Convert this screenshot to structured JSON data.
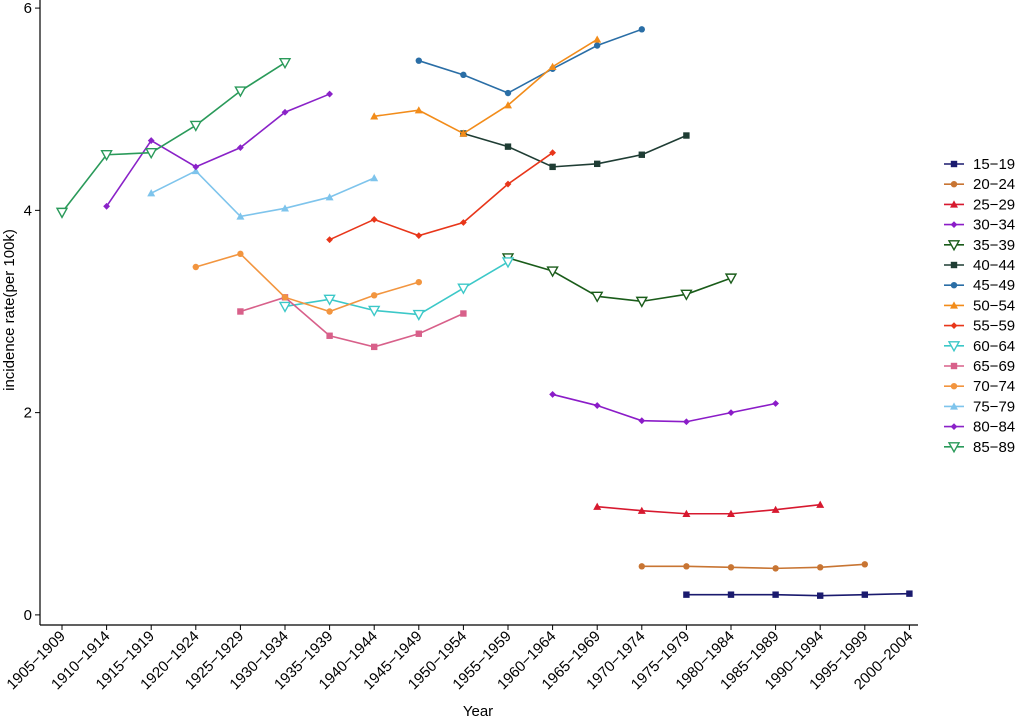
{
  "chart_data": {
    "type": "line",
    "title": "",
    "xlabel": "Year",
    "ylabel": "incidence rate(per 100k)",
    "ylim": [
      -0.1,
      6.08
    ],
    "yticks": [
      0,
      2,
      4,
      6
    ],
    "grid": false,
    "legend_position": "right",
    "categories": [
      "1905−1909",
      "1910−1914",
      "1915−1919",
      "1920−1924",
      "1925−1929",
      "1930−1934",
      "1935−1939",
      "1940−1944",
      "1945−1949",
      "1950−1954",
      "1955−1959",
      "1960−1964",
      "1965−1969",
      "1970−1974",
      "1975−1979",
      "1980−1984",
      "1985−1989",
      "1990−1994",
      "1995−1999",
      "2000−2004"
    ],
    "series": [
      {
        "name": "15−19",
        "color": "#1a1a6e",
        "marker": "square",
        "values": [
          null,
          null,
          null,
          null,
          null,
          null,
          null,
          null,
          null,
          null,
          null,
          null,
          null,
          null,
          0.2,
          0.2,
          0.2,
          0.19,
          0.2,
          0.21
        ]
      },
      {
        "name": "20−24",
        "color": "#c87533",
        "marker": "circle",
        "values": [
          null,
          null,
          null,
          null,
          null,
          null,
          null,
          null,
          null,
          null,
          null,
          null,
          null,
          0.48,
          0.48,
          0.47,
          0.46,
          0.47,
          0.5,
          null
        ]
      },
      {
        "name": "25−29",
        "color": "#d7192f",
        "marker": "triangle",
        "values": [
          null,
          null,
          null,
          null,
          null,
          null,
          null,
          null,
          null,
          null,
          null,
          null,
          1.07,
          1.03,
          1.0,
          1.0,
          1.04,
          1.09,
          null,
          null
        ]
      },
      {
        "name": "30−34",
        "color": "#8b1cc8",
        "marker": "diamond",
        "values": [
          null,
          null,
          null,
          null,
          null,
          null,
          null,
          null,
          null,
          null,
          null,
          2.18,
          2.07,
          1.92,
          1.91,
          2.0,
          2.09,
          null,
          null,
          null
        ]
      },
      {
        "name": "35−39",
        "color": "#1a5c1a",
        "marker": "triangle-down",
        "values": [
          null,
          null,
          null,
          null,
          null,
          null,
          null,
          null,
          null,
          null,
          3.53,
          3.4,
          3.15,
          3.1,
          3.17,
          3.33,
          null,
          null,
          null,
          null
        ]
      },
      {
        "name": "40−44",
        "color": "#1f3d34",
        "marker": "square",
        "values": [
          null,
          null,
          null,
          null,
          null,
          null,
          null,
          null,
          null,
          4.76,
          4.63,
          4.43,
          4.46,
          4.55,
          4.74,
          null,
          null,
          null,
          null,
          null
        ]
      },
      {
        "name": "45−49",
        "color": "#2a6ea6",
        "marker": "circle",
        "values": [
          null,
          null,
          null,
          null,
          null,
          null,
          null,
          null,
          5.48,
          5.34,
          5.16,
          5.4,
          5.63,
          5.79,
          null,
          null,
          null,
          null,
          null,
          null
        ]
      },
      {
        "name": "50−54",
        "color": "#f28c1a",
        "marker": "triangle",
        "values": [
          null,
          null,
          null,
          null,
          null,
          null,
          null,
          4.93,
          4.99,
          4.76,
          5.04,
          5.42,
          5.69,
          null,
          null,
          null,
          null,
          null,
          null,
          null
        ]
      },
      {
        "name": "55−59",
        "color": "#e8361a",
        "marker": "diamond",
        "values": [
          null,
          null,
          null,
          null,
          null,
          null,
          3.71,
          3.91,
          3.75,
          3.88,
          4.26,
          4.57,
          null,
          null,
          null,
          null,
          null,
          null,
          null,
          null
        ]
      },
      {
        "name": "60−64",
        "color": "#3cc8c8",
        "marker": "triangle-down",
        "values": [
          null,
          null,
          null,
          null,
          null,
          3.05,
          3.12,
          3.01,
          2.97,
          3.23,
          3.49,
          null,
          null,
          null,
          null,
          null,
          null,
          null,
          null,
          null
        ]
      },
      {
        "name": "65−69",
        "color": "#d8608a",
        "marker": "square",
        "values": [
          null,
          null,
          null,
          null,
          3.0,
          3.14,
          2.76,
          2.65,
          2.78,
          2.98,
          null,
          null,
          null,
          null,
          null,
          null,
          null,
          null,
          null,
          null
        ]
      },
      {
        "name": "70−74",
        "color": "#f2953f",
        "marker": "circle",
        "values": [
          null,
          null,
          null,
          3.44,
          3.57,
          3.14,
          3.0,
          3.16,
          3.29,
          null,
          null,
          null,
          null,
          null,
          null,
          null,
          null,
          null,
          null,
          null
        ]
      },
      {
        "name": "75−79",
        "color": "#7ec4ec",
        "marker": "triangle",
        "values": [
          null,
          null,
          4.17,
          4.39,
          3.94,
          4.02,
          4.13,
          4.32,
          null,
          null,
          null,
          null,
          null,
          null,
          null,
          null,
          null,
          null,
          null,
          null
        ]
      },
      {
        "name": "80−84",
        "color": "#8a22c8",
        "marker": "diamond",
        "values": [
          null,
          4.04,
          4.69,
          4.43,
          4.62,
          4.97,
          5.15,
          null,
          null,
          null,
          null,
          null,
          null,
          null,
          null,
          null,
          null,
          null,
          null,
          null
        ]
      },
      {
        "name": "85−89",
        "color": "#2a9a5a",
        "marker": "triangle-down",
        "values": [
          3.98,
          4.55,
          4.57,
          4.84,
          5.18,
          5.46,
          null,
          null,
          null,
          null,
          null,
          null,
          null,
          null,
          null,
          null,
          null,
          null,
          null,
          null
        ]
      }
    ]
  }
}
